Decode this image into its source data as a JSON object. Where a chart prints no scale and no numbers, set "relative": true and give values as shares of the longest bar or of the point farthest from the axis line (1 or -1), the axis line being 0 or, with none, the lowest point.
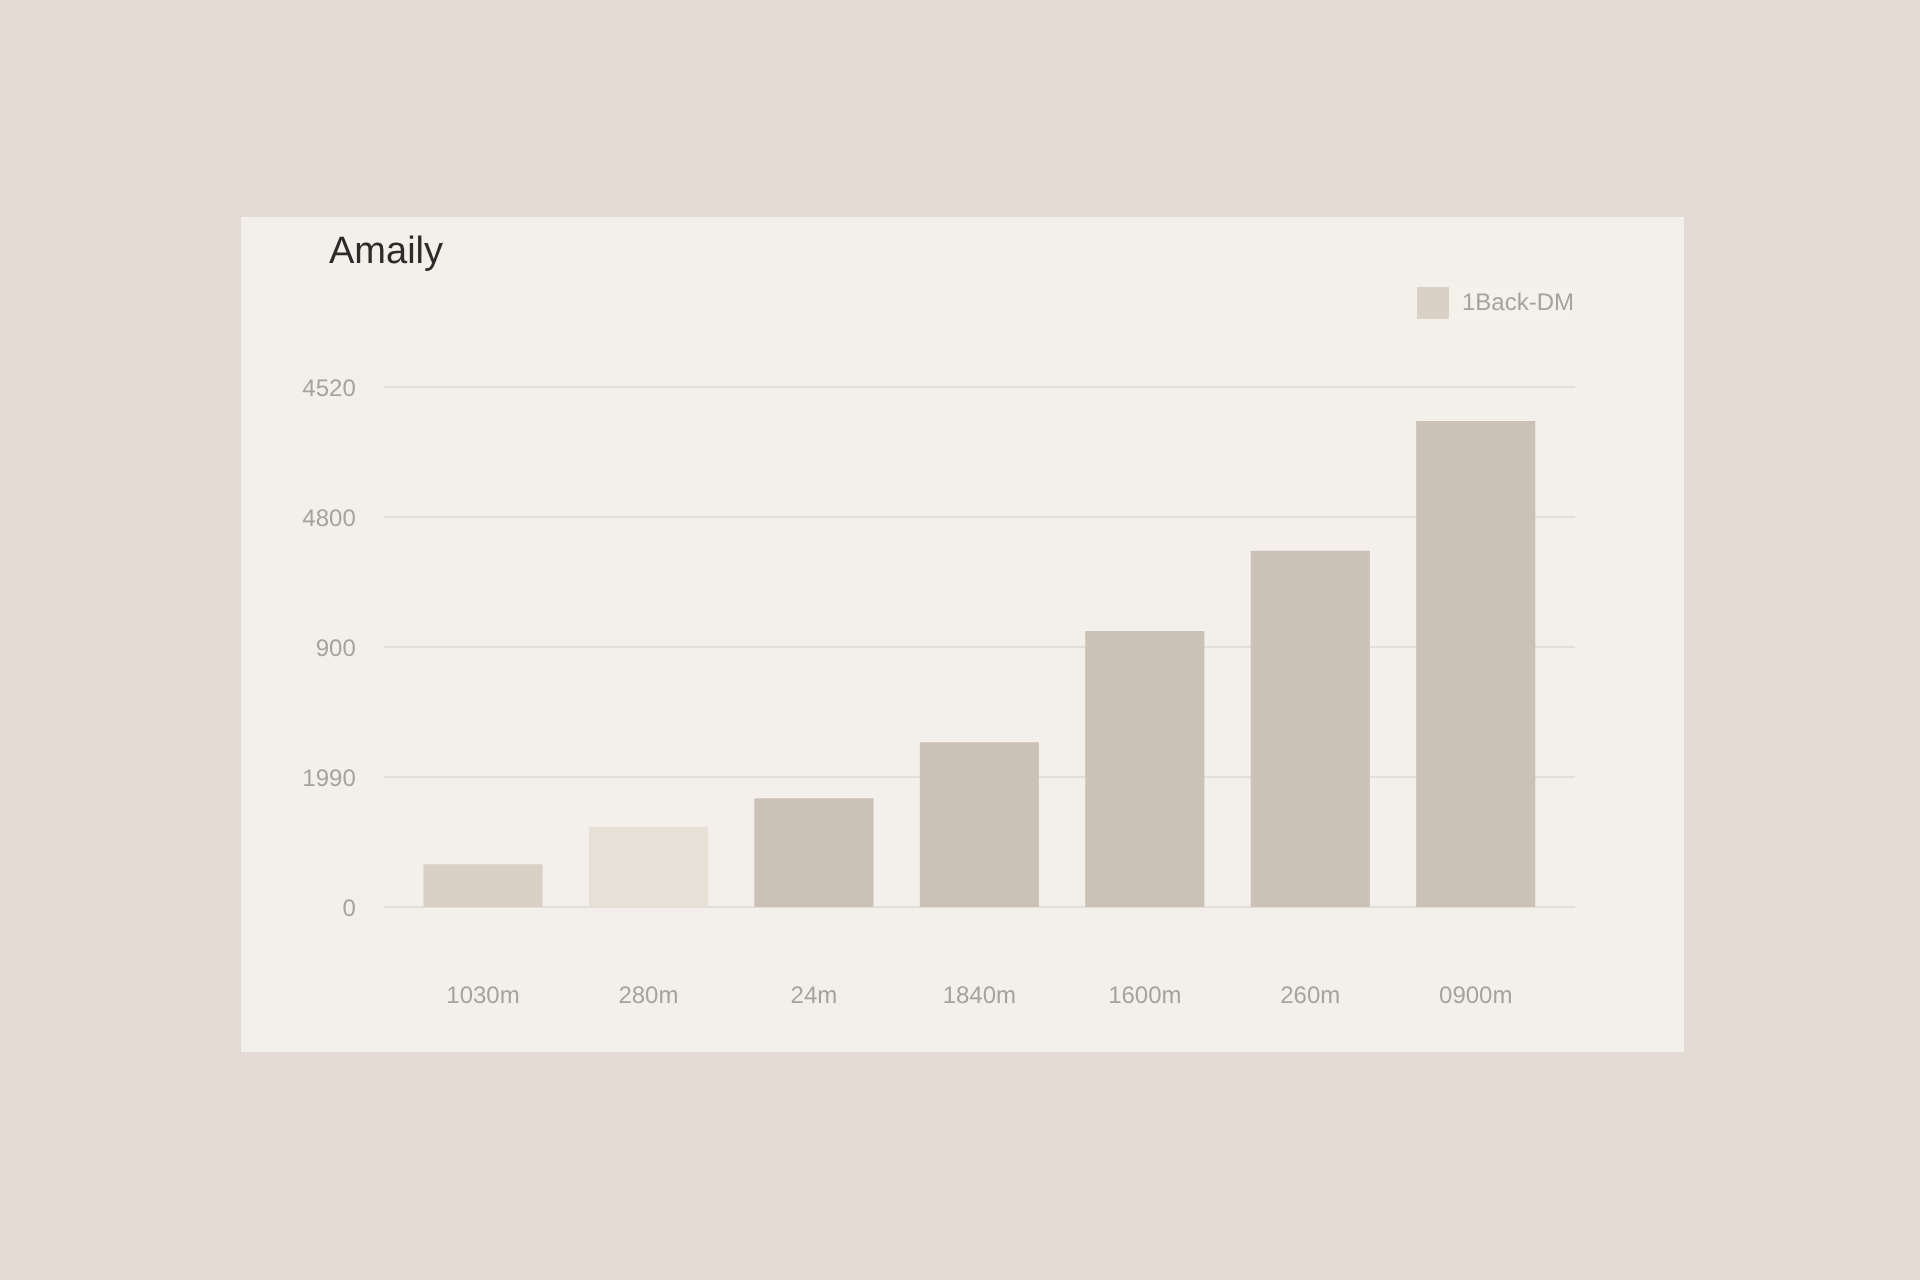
{
  "chart_data": {
    "type": "bar",
    "title": "Amaily",
    "relative": true,
    "categories": [
      "1030m",
      "280m",
      "24m",
      "1840m",
      "1600m",
      "260m",
      "0900m"
    ],
    "series": [
      {
        "name": "1Back-DM",
        "colors": [
          "#d9d0c6",
          "#e6e0d7",
          "#cbc1b6",
          "#cbc1b6",
          "#cbc1b6",
          "#cbc1b6",
          "#cbc1b6"
        ],
        "values": [
          0.088,
          0.165,
          0.224,
          0.339,
          0.568,
          0.733,
          1
        ]
      }
    ],
    "annotations": [
      "0",
      "1990",
      "900",
      "4800",
      "4520"
    ],
    "legend": "top right"
  }
}
